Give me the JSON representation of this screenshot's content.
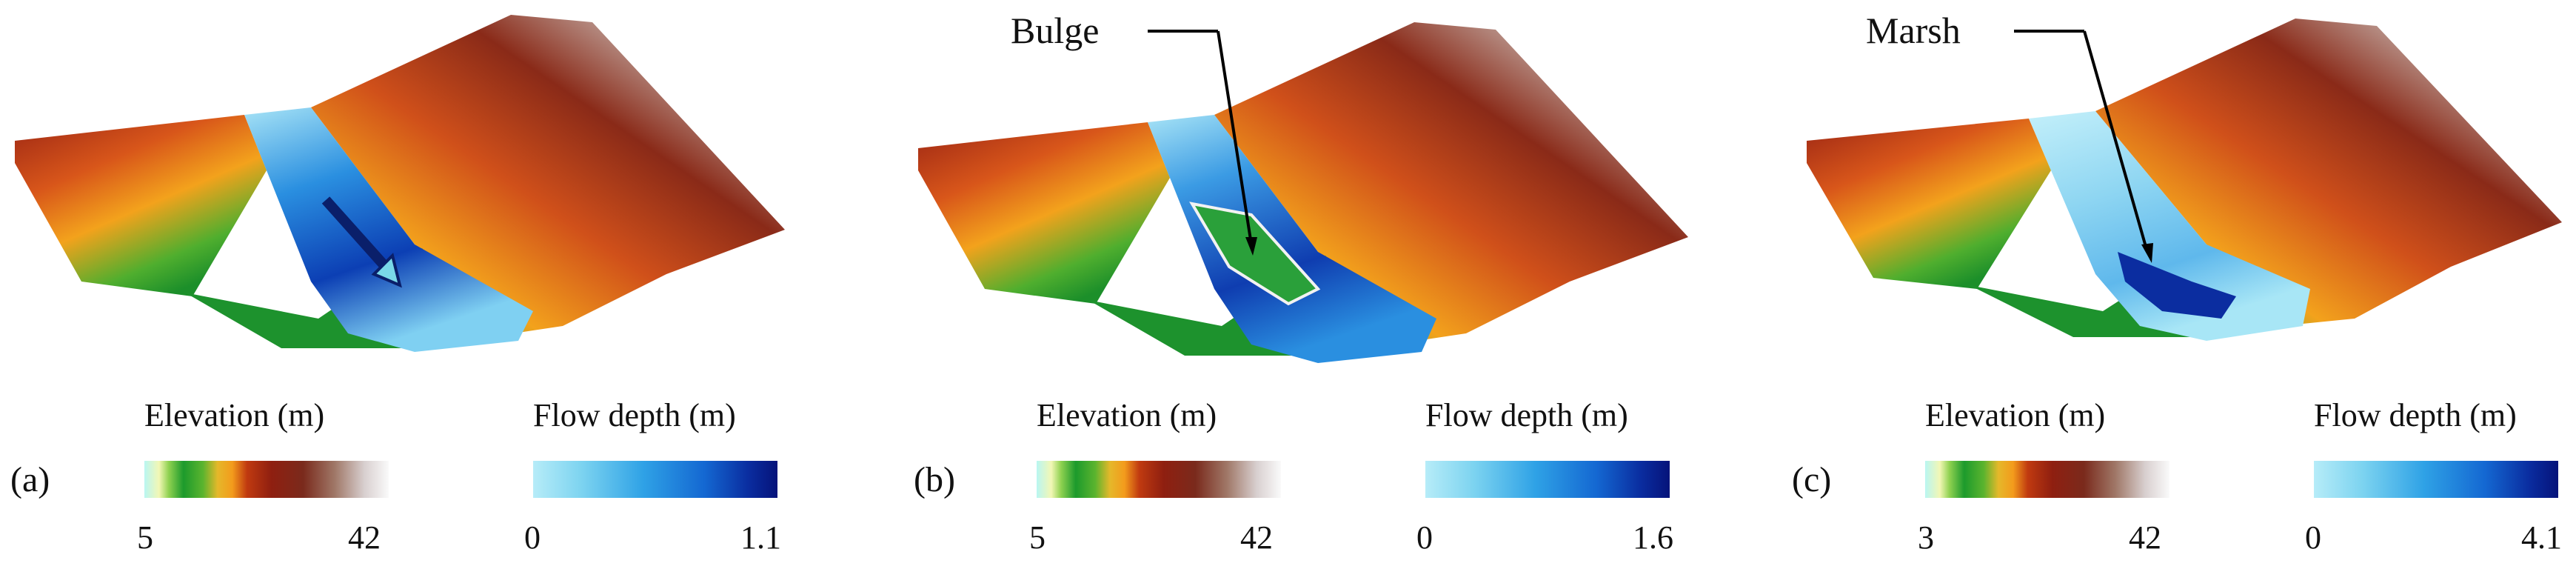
{
  "panels": [
    {
      "letter": "(a)",
      "annotation": "",
      "elevation": {
        "title": "Elevation (m)",
        "min": "5",
        "max": "42"
      },
      "flow": {
        "title": "Flow depth (m)",
        "min": "0",
        "max": "1.1"
      }
    },
    {
      "letter": "(b)",
      "annotation": "Bulge",
      "elevation": {
        "title": "Elevation (m)",
        "min": "5",
        "max": "42"
      },
      "flow": {
        "title": "Flow depth (m)",
        "min": "0",
        "max": "1.6"
      }
    },
    {
      "letter": "(c)",
      "annotation": "Marsh",
      "elevation": {
        "title": "Elevation (m)",
        "min": "3",
        "max": "42"
      },
      "flow": {
        "title": "Flow depth (m)",
        "min": "0",
        "max": "4.1"
      }
    }
  ],
  "colors": {
    "terrain_low": "#1c9a2c",
    "terrain_mid": "#f39b1c",
    "terrain_high": "#7a2a1c",
    "terrain_peak": "#f5f5f5",
    "flow_shallow": "#b6ecf8",
    "flow_deep": "#06137a"
  }
}
